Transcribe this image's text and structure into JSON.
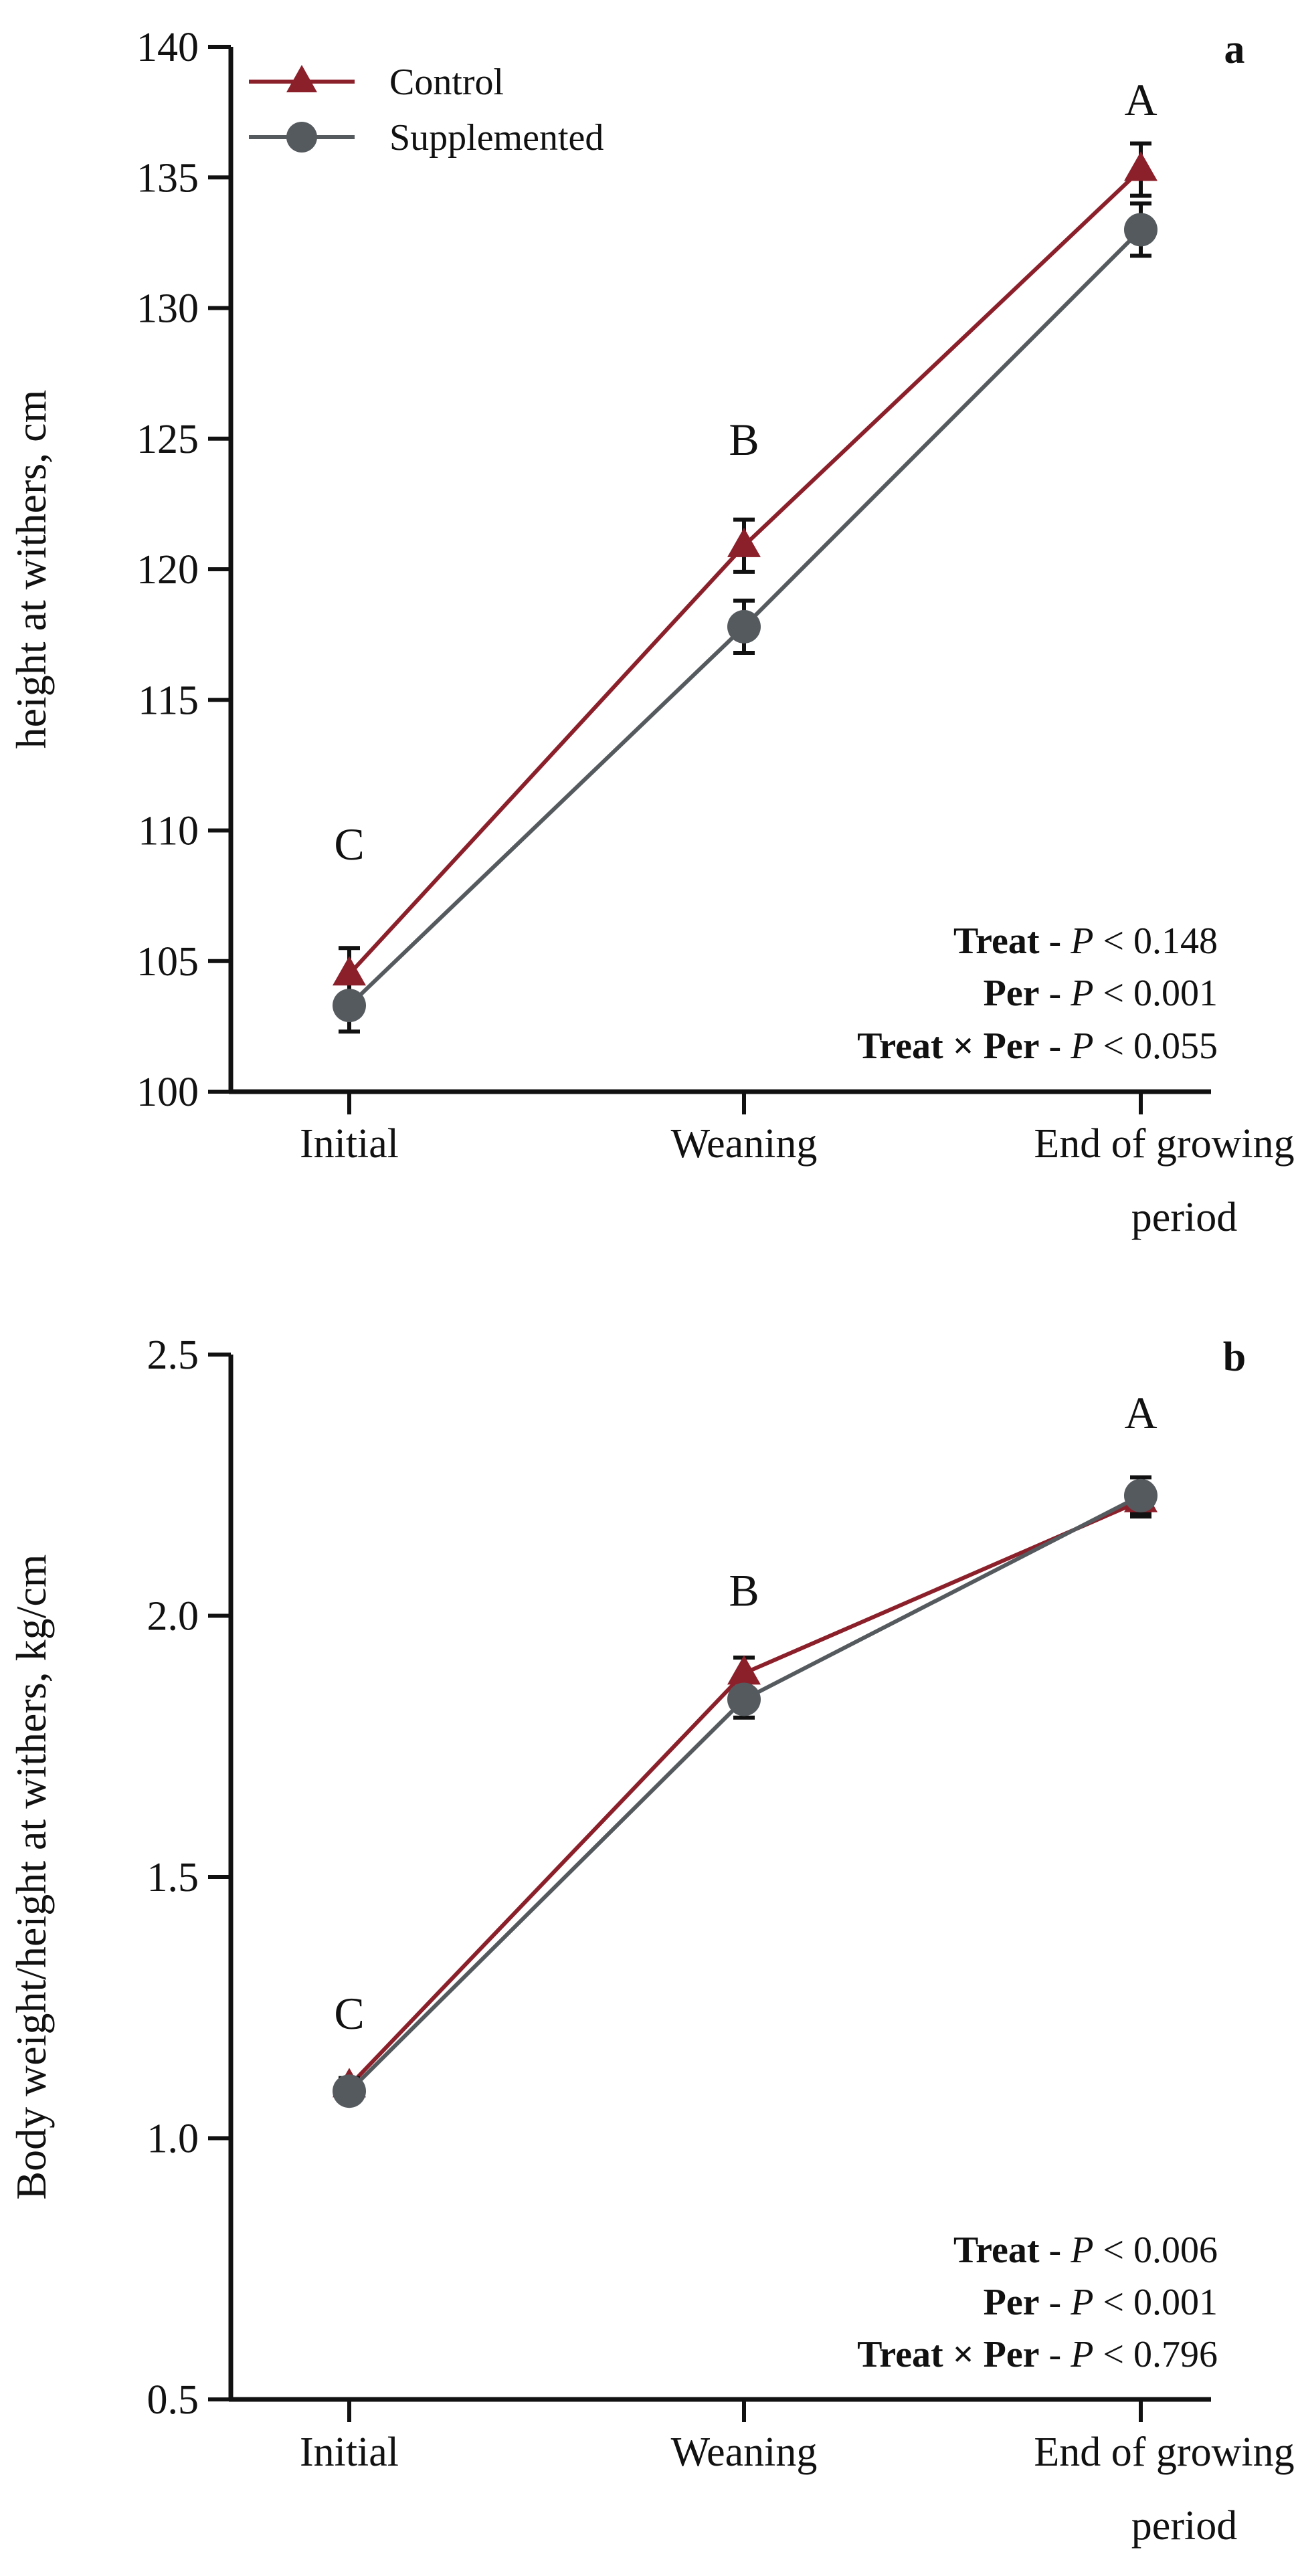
{
  "chart_data": [
    {
      "type": "line",
      "panel_label": "a",
      "categories": [
        "Initial",
        "Weaning",
        "End of growing period"
      ],
      "category_lines": [
        [
          "Initial"
        ],
        [
          "Weaning"
        ],
        [
          "End of growing",
          "period"
        ]
      ],
      "ylabel": "height at withers, cm",
      "ylim": [
        100,
        140
      ],
      "yticks": [
        100,
        105,
        110,
        115,
        120,
        125,
        130,
        135,
        140
      ],
      "ytick_labels": [
        "100",
        "105",
        "110",
        "115",
        "120",
        "125",
        "130",
        "135",
        "140"
      ],
      "series": [
        {
          "name": "Control",
          "marker": "triangle",
          "color": "#8b1f2a",
          "values": [
            104.5,
            120.9,
            135.3
          ],
          "errors": [
            1.0,
            1.0,
            1.0
          ]
        },
        {
          "name": "Supplemented",
          "marker": "circle",
          "color": "#555a5e",
          "values": [
            103.3,
            117.8,
            133.0
          ],
          "errors": [
            1.0,
            1.0,
            1.0
          ]
        }
      ],
      "group_letters": [
        {
          "category": "Initial",
          "letter": "C",
          "y": 109.5
        },
        {
          "category": "Weaning",
          "letter": "B",
          "y": 125.0
        },
        {
          "category": "End of growing period",
          "letter": "A",
          "y": 138.0
        }
      ],
      "stats": [
        {
          "term": "Treat",
          "sep": " - ",
          "p": "P",
          "value": " < 0.148"
        },
        {
          "term": "Per",
          "sep": " - ",
          "p": "P",
          "value": " < 0.001"
        },
        {
          "term": "Treat × Per",
          "sep": " - ",
          "p": "P",
          "value": " < 0.055"
        }
      ],
      "legend": true
    },
    {
      "type": "line",
      "panel_label": "b",
      "categories": [
        "Initial",
        "Weaning",
        "End of growing period"
      ],
      "category_lines": [
        [
          "Initial"
        ],
        [
          "Weaning"
        ],
        [
          "End of growing",
          "period"
        ]
      ],
      "ylabel": "Body weight/height at withers, kg/cm",
      "ylim": [
        0.5,
        2.5
      ],
      "yticks": [
        0.5,
        1.0,
        1.5,
        2.0,
        2.5
      ],
      "ytick_labels": [
        "0.5",
        "1.0",
        "1.5",
        "2.0",
        "2.5"
      ],
      "series": [
        {
          "name": "Control",
          "marker": "triangle",
          "color": "#8b1f2a",
          "values": [
            1.1,
            1.89,
            2.22
          ],
          "errors": [
            0.015,
            0.03,
            0.03
          ]
        },
        {
          "name": "Supplemented",
          "marker": "circle",
          "color": "#555a5e",
          "values": [
            1.09,
            1.84,
            2.23
          ],
          "errors": [
            0.015,
            0.035,
            0.035
          ]
        }
      ],
      "group_letters": [
        {
          "category": "Initial",
          "letter": "C",
          "y": 1.24
        },
        {
          "category": "Weaning",
          "letter": "B",
          "y": 2.05
        },
        {
          "category": "End of growing period",
          "letter": "A",
          "y": 2.39
        }
      ],
      "stats": [
        {
          "term": "Treat",
          "sep": " - ",
          "p": "P",
          "value": " < 0.006"
        },
        {
          "term": "Per",
          "sep": " - ",
          "p": "P",
          "value": " < 0.001"
        },
        {
          "term": "Treat × Per",
          "sep": " - ",
          "p": "P",
          "value": " < 0.796"
        }
      ],
      "legend": false
    }
  ]
}
